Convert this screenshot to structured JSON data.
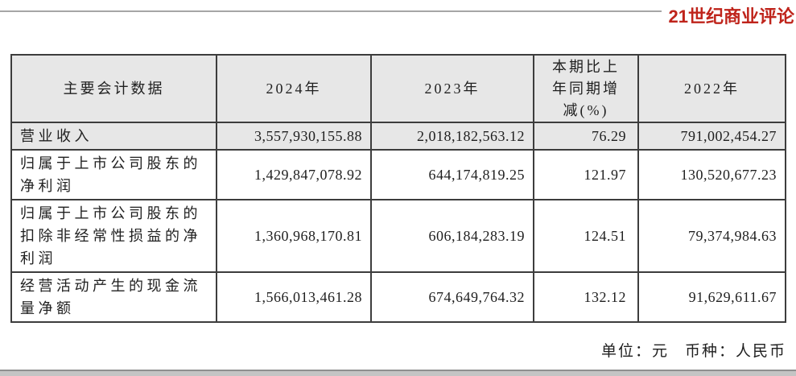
{
  "brand": {
    "logo_text": "21世纪商业评论",
    "logo_color": "#bf241b"
  },
  "table": {
    "headers": {
      "metric": "主要会计数据",
      "y2024": "2024年",
      "y2023": "2023年",
      "change": "本期比上\n年同期增\n减(%)",
      "y2022": "2022年"
    },
    "rows": [
      {
        "label": "营业收入",
        "y2024": "3,557,930,155.88",
        "y2023": "2,018,182,563.12",
        "change_pct": "76.29",
        "y2022": "791,002,454.27"
      },
      {
        "label": "归属于上市公司股东的净利润",
        "y2024": "1,429,847,078.92",
        "y2023": "644,174,819.25",
        "change_pct": "121.97",
        "y2022": "130,520,677.23"
      },
      {
        "label": "归属于上市公司股东的扣除非经常性损益的净利润",
        "y2024": "1,360,968,170.81",
        "y2023": "606,184,283.19",
        "change_pct": "124.51",
        "y2022": "79,374,984.63"
      },
      {
        "label": "经营活动产生的现金流量净额",
        "y2024": "1,566,013,461.28",
        "y2023": "674,649,764.32",
        "change_pct": "132.12",
        "y2022": "91,629,611.67"
      }
    ]
  },
  "footer": {
    "unit_label": "单位：元",
    "currency_label": "币种：人民币"
  },
  "colors": {
    "logo_red": "#bf241b",
    "header_row_bg": "#e7e7e7",
    "table_border": "#3d3d3d",
    "rule_gray": "#a6a6a6",
    "scrollbar_gray": "#c4c4c4"
  }
}
